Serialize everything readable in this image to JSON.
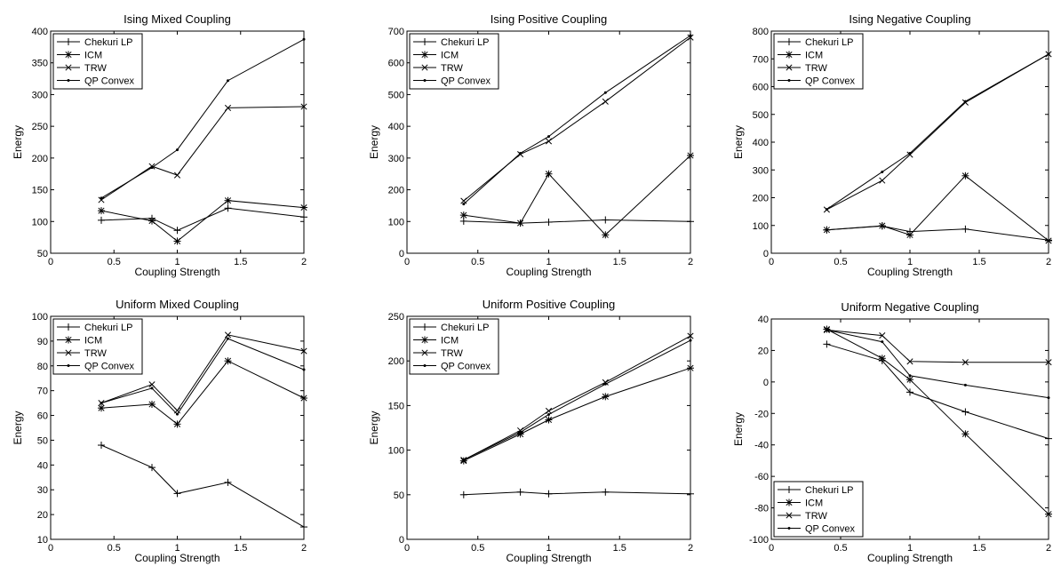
{
  "chart_data": [
    {
      "type": "line",
      "title": "Ising Mixed Coupling",
      "xlabel": "Coupling Strength",
      "ylabel": "Energy",
      "xlim": [
        0,
        2
      ],
      "ylim": [
        50,
        400
      ],
      "xticks": [
        "0",
        "0.5",
        "1",
        "1.5",
        "2"
      ],
      "yticks": [
        "50",
        "100",
        "150",
        "200",
        "250",
        "300",
        "350",
        "400"
      ],
      "legend_position": "top-left",
      "x": [
        0.4,
        0.8,
        1.0,
        1.4,
        2.0
      ],
      "series": [
        {
          "name": "Chekuri LP",
          "marker": "plus",
          "values": [
            102,
            105,
            86,
            121,
            107
          ]
        },
        {
          "name": "ICM",
          "marker": "star",
          "values": [
            117,
            101,
            69,
            133,
            122
          ]
        },
        {
          "name": "TRW",
          "marker": "cross",
          "values": [
            134,
            187,
            173,
            279,
            281
          ]
        },
        {
          "name": "QP Convex",
          "marker": "dot",
          "values": [
            137,
            185,
            213,
            322,
            387
          ]
        }
      ]
    },
    {
      "type": "line",
      "title": "Ising Positive Coupling",
      "xlabel": "Coupling Strength",
      "ylabel": "Energy",
      "xlim": [
        0,
        2
      ],
      "ylim": [
        0,
        700
      ],
      "xticks": [
        "0",
        "0.5",
        "1",
        "1.5",
        "2"
      ],
      "yticks": [
        "0",
        "100",
        "200",
        "300",
        "400",
        "500",
        "600",
        "700"
      ],
      "legend_position": "top-left",
      "x": [
        0.4,
        0.8,
        1.0,
        1.4,
        2.0
      ],
      "series": [
        {
          "name": "Chekuri LP",
          "marker": "plus",
          "values": [
            101,
            95,
            98,
            105,
            100
          ]
        },
        {
          "name": "ICM",
          "marker": "star",
          "values": [
            120,
            95,
            250,
            58,
            308
          ]
        },
        {
          "name": "TRW",
          "marker": "cross",
          "values": [
            165,
            312,
            353,
            478,
            680
          ]
        },
        {
          "name": "QP Convex",
          "marker": "dot",
          "values": [
            155,
            315,
            368,
            506,
            686
          ]
        }
      ]
    },
    {
      "type": "line",
      "title": "Ising Negative Coupling",
      "xlabel": "Coupling Strength",
      "ylabel": "Energy",
      "xlim": [
        0,
        2
      ],
      "ylim": [
        0,
        800
      ],
      "xticks": [
        "0",
        "0.5",
        "1",
        "1.5",
        "2"
      ],
      "yticks": [
        "0",
        "100",
        "200",
        "300",
        "400",
        "500",
        "600",
        "700",
        "800"
      ],
      "legend_position": "top-left",
      "x": [
        0.4,
        0.8,
        1.0,
        1.4,
        2.0
      ],
      "series": [
        {
          "name": "Chekuri LP",
          "marker": "plus",
          "values": [
            84,
            98,
            78,
            87,
            47
          ]
        },
        {
          "name": "ICM",
          "marker": "star",
          "values": [
            84,
            99,
            66,
            279,
            45
          ]
        },
        {
          "name": "TRW",
          "marker": "cross",
          "values": [
            157,
            262,
            355,
            543,
            717
          ]
        },
        {
          "name": "QP Convex",
          "marker": "dot",
          "values": [
            158,
            293,
            360,
            547,
            717
          ]
        }
      ]
    },
    {
      "type": "line",
      "title": "Uniform Mixed Coupling",
      "xlabel": "Coupling Strength",
      "ylabel": "Energy",
      "xlim": [
        0,
        2
      ],
      "ylim": [
        10,
        100
      ],
      "xticks": [
        "0",
        "0.5",
        "1",
        "1.5",
        "2"
      ],
      "yticks": [
        "10",
        "20",
        "30",
        "40",
        "50",
        "60",
        "70",
        "80",
        "90",
        "100"
      ],
      "legend_position": "top-left",
      "x": [
        0.4,
        0.8,
        1.0,
        1.4,
        2.0
      ],
      "series": [
        {
          "name": "Chekuri LP",
          "marker": "plus",
          "values": [
            48,
            39,
            28.5,
            33,
            15
          ]
        },
        {
          "name": "ICM",
          "marker": "star",
          "values": [
            63,
            64.5,
            56.5,
            82,
            67
          ]
        },
        {
          "name": "TRW",
          "marker": "cross",
          "values": [
            65,
            72.5,
            62,
            92.5,
            86
          ]
        },
        {
          "name": "QP Convex",
          "marker": "dot",
          "values": [
            65,
            71,
            60.5,
            91,
            78.5
          ]
        }
      ]
    },
    {
      "type": "line",
      "title": "Uniform Positive Coupling",
      "xlabel": "Coupling Strength",
      "ylabel": "Energy",
      "xlim": [
        0,
        2
      ],
      "ylim": [
        0,
        250
      ],
      "xticks": [
        "0",
        "0.5",
        "1",
        "1.5",
        "2"
      ],
      "yticks": [
        "0",
        "50",
        "100",
        "150",
        "200",
        "250"
      ],
      "legend_position": "top-left",
      "x": [
        0.4,
        0.8,
        1.0,
        1.4,
        2.0
      ],
      "series": [
        {
          "name": "Chekuri LP",
          "marker": "plus",
          "values": [
            50,
            53,
            51,
            53,
            51
          ]
        },
        {
          "name": "ICM",
          "marker": "star",
          "values": [
            88,
            118,
            134,
            160,
            192
          ]
        },
        {
          "name": "TRW",
          "marker": "cross",
          "values": [
            89,
            122,
            144,
            176,
            228
          ]
        },
        {
          "name": "QP Convex",
          "marker": "dot",
          "values": [
            89,
            120,
            140,
            174,
            223
          ]
        }
      ]
    },
    {
      "type": "line",
      "title": "Uniform Negative Coupling",
      "xlabel": "Coupling Strength",
      "ylabel": "Energy",
      "xlim": [
        0,
        2
      ],
      "ylim": [
        -100,
        40
      ],
      "xticks": [
        "0",
        "0.5",
        "1",
        "1.5",
        "2"
      ],
      "yticks": [
        "-100",
        "-80",
        "-60",
        "-40",
        "-20",
        "0",
        "20",
        "40"
      ],
      "legend_position": "bottom-left",
      "x": [
        0.4,
        0.8,
        1.0,
        1.4,
        2.0
      ],
      "series": [
        {
          "name": "Chekuri LP",
          "marker": "plus",
          "values": [
            24,
            13.5,
            -6.5,
            -19,
            -36
          ]
        },
        {
          "name": "ICM",
          "marker": "star",
          "values": [
            33.5,
            15,
            1.5,
            -33,
            -84
          ]
        },
        {
          "name": "TRW",
          "marker": "cross",
          "values": [
            33,
            29.5,
            13,
            12.5,
            12.5
          ]
        },
        {
          "name": "QP Convex",
          "marker": "dot",
          "values": [
            33,
            25.5,
            4,
            -2,
            -10
          ]
        }
      ]
    }
  ]
}
